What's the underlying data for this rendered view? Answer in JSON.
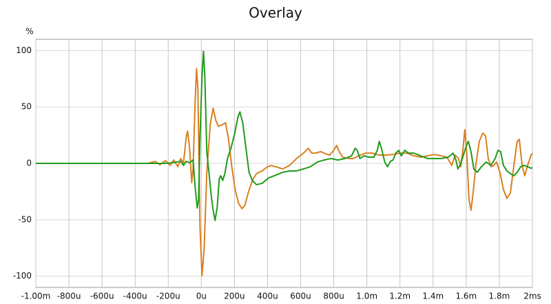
{
  "chart_data": {
    "type": "line",
    "title": "Overlay",
    "ylabel": "%",
    "xlim": [
      -1.0,
      2.0
    ],
    "ylim": [
      -110,
      110
    ],
    "xticks": [
      {
        "value": -1.0,
        "label": "-1.00m"
      },
      {
        "value": -0.8,
        "label": "-800u"
      },
      {
        "value": -0.6,
        "label": "-600u"
      },
      {
        "value": -0.4,
        "label": "-400u"
      },
      {
        "value": -0.2,
        "label": "-200u"
      },
      {
        "value": 0,
        "label": "0u"
      },
      {
        "value": 0.2,
        "label": "200u"
      },
      {
        "value": 0.4,
        "label": "400u"
      },
      {
        "value": 0.6,
        "label": "600u"
      },
      {
        "value": 0.8,
        "label": "800u"
      },
      {
        "value": 1.0,
        "label": "1.0m"
      },
      {
        "value": 1.2,
        "label": "1.2m"
      },
      {
        "value": 1.4,
        "label": "1.4m"
      },
      {
        "value": 1.6,
        "label": "1.6m"
      },
      {
        "value": 1.8,
        "label": "1.8m"
      },
      {
        "value": 2.0,
        "label": "2ms"
      }
    ],
    "yticks": [
      100,
      50,
      0,
      -50,
      -100
    ],
    "grid": true,
    "series": [
      {
        "color": "#d97f1e",
        "x": [
          -1.0,
          -0.383,
          -0.321,
          -0.279,
          -0.25,
          -0.217,
          -0.188,
          -0.167,
          -0.142,
          -0.125,
          -0.108,
          -0.092,
          -0.083,
          -0.071,
          -0.058,
          -0.05,
          -0.038,
          -0.029,
          -0.021,
          -0.008,
          0.004,
          0.017,
          0.033,
          0.054,
          0.071,
          0.088,
          0.104,
          0.125,
          0.146,
          0.163,
          0.183,
          0.204,
          0.225,
          0.246,
          0.263,
          0.283,
          0.308,
          0.333,
          0.367,
          0.4,
          0.421,
          0.45,
          0.492,
          0.533,
          0.575,
          0.617,
          0.646,
          0.667,
          0.692,
          0.721,
          0.75,
          0.775,
          0.8,
          0.817,
          0.833,
          0.854,
          0.888,
          0.917,
          0.95,
          0.992,
          1.033,
          1.075,
          1.117,
          1.158,
          1.2,
          1.242,
          1.283,
          1.325,
          1.367,
          1.408,
          1.45,
          1.483,
          1.513,
          1.533,
          1.554,
          1.567,
          1.579,
          1.592,
          1.604,
          1.617,
          1.629,
          1.642,
          1.658,
          1.679,
          1.7,
          1.717,
          1.733,
          1.75,
          1.767,
          1.783,
          1.804,
          1.825,
          1.846,
          1.867,
          1.888,
          1.908,
          1.921,
          1.938,
          1.954,
          1.971,
          1.992,
          2.0
        ],
        "values": [
          0,
          0,
          0,
          1.8,
          -1.2,
          2.4,
          -1.8,
          3.0,
          -3.0,
          4.3,
          0,
          22.6,
          28.7,
          13.4,
          -17.1,
          -4.9,
          53.7,
          84.1,
          65.9,
          -56.7,
          -99.4,
          -75,
          -7.9,
          34.8,
          48.8,
          37.8,
          32.9,
          34.1,
          36.0,
          22.6,
          -1.8,
          -23.2,
          -35.4,
          -40.2,
          -37.2,
          -26.2,
          -15.2,
          -9.1,
          -6.7,
          -3.0,
          -1.8,
          -3.0,
          -4.9,
          -1.8,
          4.3,
          9.1,
          13.4,
          9.1,
          9.1,
          10.4,
          8.5,
          7.3,
          11.6,
          15.9,
          10.4,
          5.5,
          4.3,
          4.3,
          6.7,
          9.1,
          9.1,
          7.3,
          7.3,
          7.9,
          9.1,
          9.1,
          6.7,
          5.5,
          6.7,
          7.9,
          6.7,
          5.5,
          -1.8,
          7.3,
          4.3,
          -3.0,
          10.4,
          29.9,
          7.3,
          -32.3,
          -41.5,
          -26.2,
          -1.8,
          19.5,
          26.8,
          24.4,
          4.3,
          -3.0,
          -1.8,
          1.2,
          -7.9,
          -23.2,
          -31.1,
          -26.2,
          -1.8,
          19.5,
          21.3,
          -1.8,
          -11.0,
          -1.8,
          7.3,
          9.1
        ]
      },
      {
        "color": "#1f9a1a",
        "x": [
          -1.0,
          -0.258,
          -0.217,
          -0.175,
          -0.125,
          -0.108,
          -0.092,
          -0.071,
          -0.05,
          -0.038,
          -0.025,
          -0.017,
          -0.008,
          0.004,
          0.013,
          0.021,
          0.033,
          0.046,
          0.058,
          0.071,
          0.083,
          0.096,
          0.108,
          0.117,
          0.129,
          0.142,
          0.158,
          0.179,
          0.2,
          0.221,
          0.233,
          0.25,
          0.267,
          0.288,
          0.308,
          0.333,
          0.367,
          0.408,
          0.45,
          0.492,
          0.533,
          0.575,
          0.617,
          0.658,
          0.7,
          0.742,
          0.783,
          0.825,
          0.867,
          0.908,
          0.929,
          0.942,
          0.958,
          0.983,
          1.013,
          1.042,
          1.063,
          1.075,
          1.088,
          1.108,
          1.125,
          1.142,
          1.158,
          1.175,
          1.192,
          1.208,
          1.229,
          1.25,
          1.283,
          1.325,
          1.367,
          1.408,
          1.45,
          1.492,
          1.521,
          1.538,
          1.55,
          1.567,
          1.583,
          1.6,
          1.613,
          1.629,
          1.646,
          1.667,
          1.692,
          1.721,
          1.75,
          1.775,
          1.792,
          1.808,
          1.825,
          1.846,
          1.867,
          1.888,
          1.908,
          1.929,
          1.95,
          1.971,
          1.992,
          2.0
        ],
        "values": [
          0,
          0,
          0,
          0.6,
          1.8,
          -1.8,
          1.8,
          0.6,
          3.0,
          -20.1,
          -39.6,
          -32.3,
          22.6,
          77.4,
          99.4,
          77.4,
          10.4,
          -7.9,
          -26.2,
          -41.5,
          -50.6,
          -38.4,
          -14.0,
          -11.0,
          -15.2,
          -9.1,
          4.3,
          13.4,
          25.6,
          40.9,
          45.7,
          36.0,
          16.5,
          -7.9,
          -15.2,
          -18.9,
          -17.7,
          -12.8,
          -10.4,
          -7.9,
          -6.7,
          -6.7,
          -4.9,
          -3.0,
          1.2,
          3.0,
          4.3,
          3.0,
          4.3,
          6.7,
          13.4,
          11.6,
          4.3,
          6.7,
          5.5,
          5.5,
          11.6,
          19.5,
          13.4,
          1.2,
          -3.0,
          1.8,
          3.0,
          9.1,
          11.6,
          6.7,
          11.6,
          9.1,
          9.1,
          6.7,
          4.3,
          4.3,
          4.3,
          5.5,
          9.1,
          3.0,
          -4.9,
          -0.6,
          7.3,
          15.2,
          19.5,
          10.4,
          -4.9,
          -7.9,
          -3.0,
          1.2,
          -1.8,
          4.3,
          11.6,
          10.4,
          -1.8,
          -6.7,
          -9.1,
          -11.0,
          -7.9,
          -3.0,
          -1.8,
          -3.0,
          -4.3,
          -3.7
        ]
      }
    ]
  }
}
